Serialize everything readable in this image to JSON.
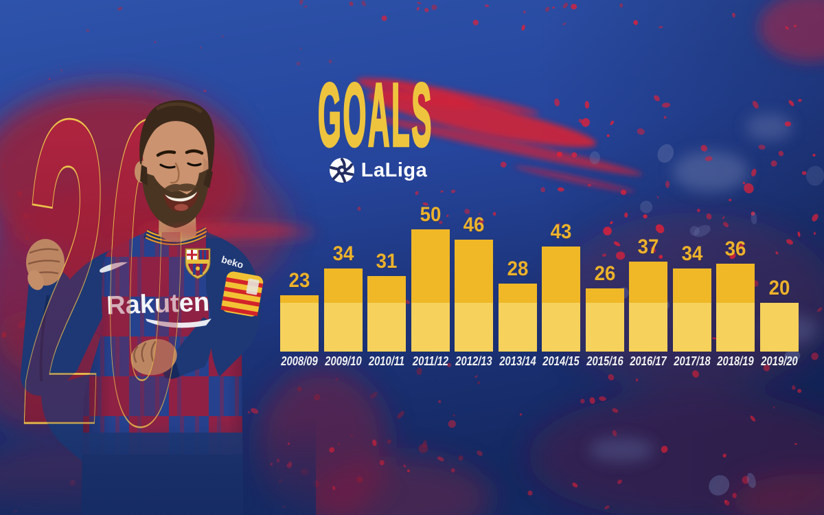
{
  "header": {
    "title": "GOALS",
    "league_name": "LaLiga"
  },
  "big_number": {
    "value": "20"
  },
  "player": {
    "shirt_sponsor": "Rakuten",
    "sleeve_sponsor": "beko"
  },
  "colors": {
    "background_blue": "#27459c",
    "splatter_red": "#d81f36",
    "accent_yellow": "#ecc24a",
    "number_maroon": "#9c2038"
  },
  "chart_data": {
    "type": "bar",
    "title": "GOALS",
    "competition": "LaLiga",
    "categories": [
      "2008/09",
      "2009/10",
      "2010/11",
      "2011/12",
      "2012/13",
      "2013/14",
      "2014/15",
      "2015/16",
      "2016/17",
      "2017/18",
      "2018/19",
      "2019/20"
    ],
    "values": [
      23,
      34,
      31,
      50,
      46,
      28,
      43,
      26,
      37,
      34,
      36,
      20
    ],
    "ylim": [
      0,
      50
    ],
    "grid": false,
    "legend": false,
    "value_labels_position": "above bars",
    "bar_color_top": "#f0b826",
    "bar_color_bottom": "#f6d15c",
    "value_label_color": "#ecb22b",
    "category_label_color": "#f2f2f2"
  }
}
